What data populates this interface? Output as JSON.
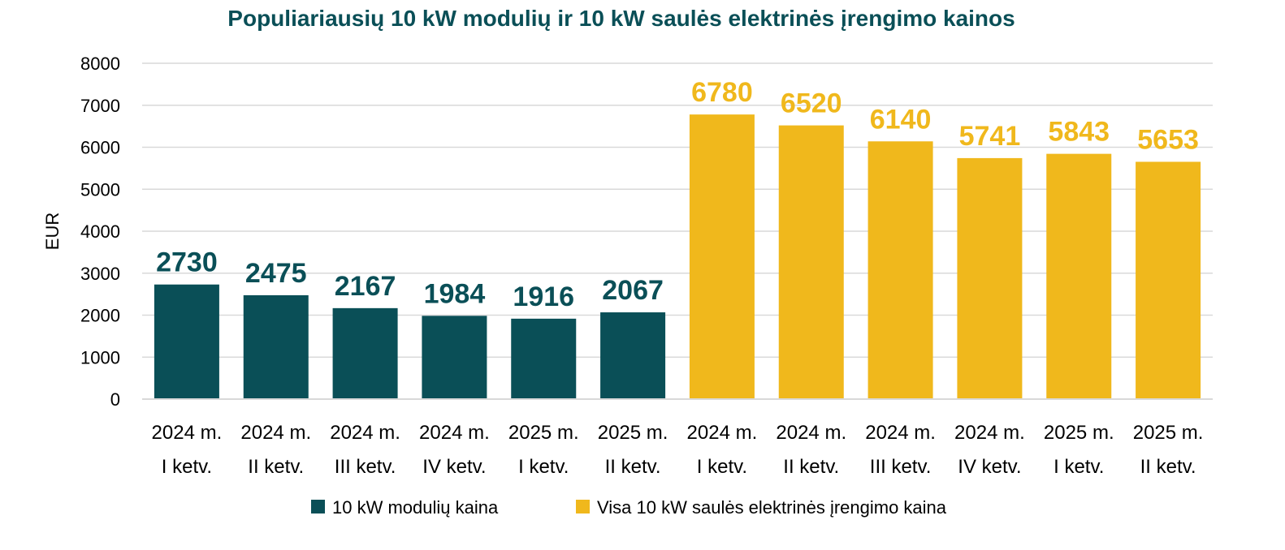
{
  "colors": {
    "series1": "#0a4f57",
    "series2": "#f0b81c",
    "title": "#0a4f57",
    "grid": "#d9d9d9"
  },
  "chart_data": {
    "type": "bar",
    "title": "Populiariausių 10 kW modulių ir 10 kW saulės elektrinės įrengimo kainos",
    "xlabel": "",
    "ylabel": "EUR",
    "ylim": [
      0,
      8000
    ],
    "yticks": [
      "0",
      "1000",
      "2000",
      "3000",
      "4000",
      "5000",
      "6000",
      "7000",
      "8000"
    ],
    "grid": true,
    "legend_position": "bottom",
    "categories": [
      {
        "line1": "2024 m.",
        "line2": "I ketv."
      },
      {
        "line1": "2024 m.",
        "line2": "II ketv."
      },
      {
        "line1": "2024 m.",
        "line2": "III ketv."
      },
      {
        "line1": "2024 m.",
        "line2": "IV ketv."
      },
      {
        "line1": "2025 m.",
        "line2": "I ketv."
      },
      {
        "line1": "2025 m.",
        "line2": "II ketv."
      },
      {
        "line1": "2024 m.",
        "line2": "I ketv."
      },
      {
        "line1": "2024 m.",
        "line2": "II ketv."
      },
      {
        "line1": "2024 m.",
        "line2": "III ketv."
      },
      {
        "line1": "2024 m.",
        "line2": "IV ketv."
      },
      {
        "line1": "2025 m.",
        "line2": "I ketv."
      },
      {
        "line1": "2025 m.",
        "line2": "II ketv."
      }
    ],
    "series": [
      {
        "name": "10 kW modulių kaina",
        "color": "#0a4f57",
        "values": [
          2730,
          2475,
          2167,
          1984,
          1916,
          2067,
          null,
          null,
          null,
          null,
          null,
          null
        ]
      },
      {
        "name": "Visa 10 kW saulės elektrinės įrengimo kaina",
        "color": "#f0b81c",
        "values": [
          null,
          null,
          null,
          null,
          null,
          null,
          6780,
          6520,
          6140,
          5741,
          5843,
          5653
        ]
      }
    ]
  }
}
